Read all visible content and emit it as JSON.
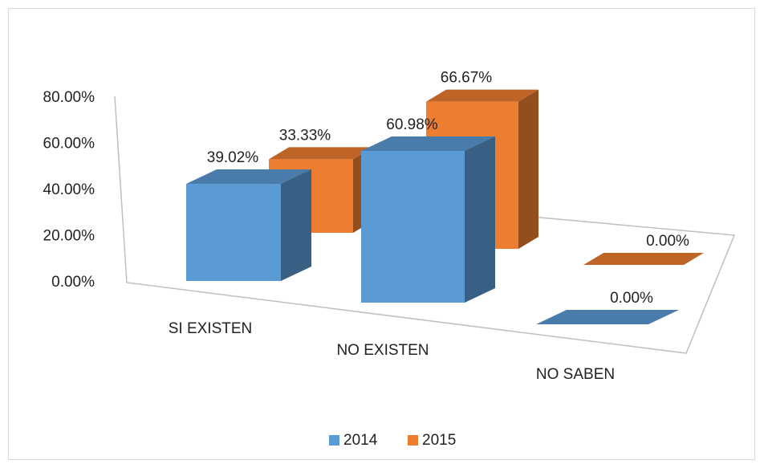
{
  "chart_data": {
    "type": "bar3d",
    "categories": [
      "SI EXISTEN",
      "NO EXISTEN",
      "NO SABEN"
    ],
    "series": [
      {
        "name": "2014",
        "color": "#5b9bd5",
        "values": [
          39.02,
          60.98,
          0
        ],
        "value_labels": [
          "39.02%",
          "60.98%",
          "0.00%"
        ]
      },
      {
        "name": "2015",
        "color": "#ed7d31",
        "values": [
          33.33,
          66.67,
          0
        ],
        "value_labels": [
          "33.33%",
          "66.67%",
          "0.00%"
        ]
      }
    ],
    "ylim": [
      0,
      80
    ],
    "yticks": [
      {
        "value": 0,
        "label": "0.00%"
      },
      {
        "value": 20,
        "label": "20.00%"
      },
      {
        "value": 40,
        "label": "40.00%"
      },
      {
        "value": 60,
        "label": "60.00%"
      },
      {
        "value": 80,
        "label": "80.00%"
      }
    ],
    "legend": "bottom"
  }
}
